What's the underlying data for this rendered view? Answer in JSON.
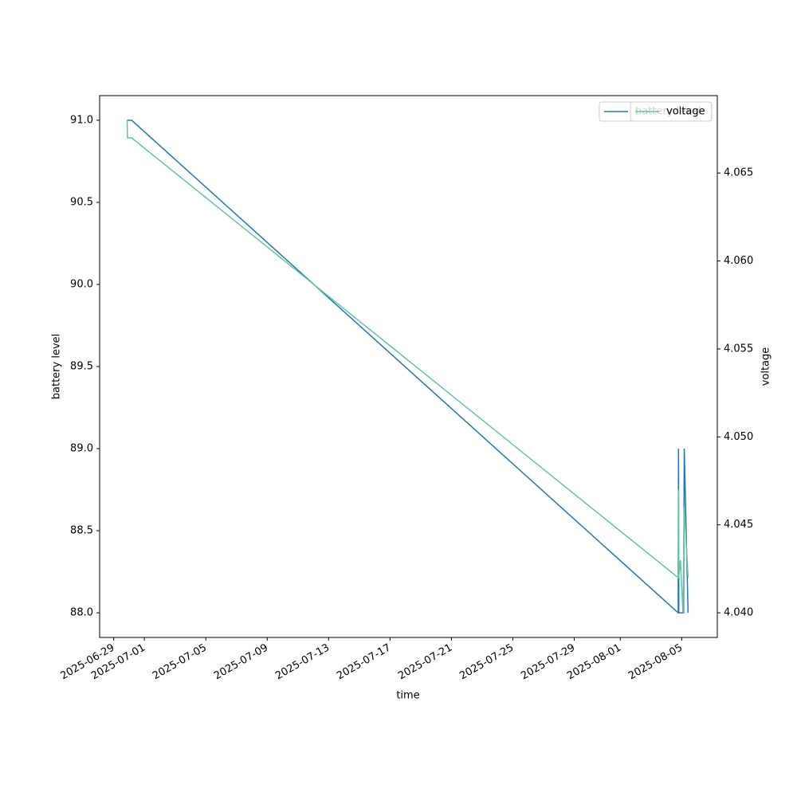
{
  "chart_data": {
    "type": "line",
    "x_label": "time",
    "y_label": "battery level",
    "y2_label": "voltage",
    "xlim": [
      "2025-06-28T02:00",
      "2025-08-07T07:40"
    ],
    "xticks": [
      "2025-06-29",
      "2025-07-01",
      "2025-07-05",
      "2025-07-09",
      "2025-07-13",
      "2025-07-17",
      "2025-07-21",
      "2025-07-25",
      "2025-07-29",
      "2025-08-01",
      "2025-08-05"
    ],
    "ylim": [
      87.85,
      91.15
    ],
    "yticks": [
      {
        "value": 88,
        "label": "88.0"
      },
      {
        "value": 88.5,
        "label": "88.5"
      },
      {
        "value": 89,
        "label": "89.0"
      },
      {
        "value": 89.5,
        "label": "89.5"
      },
      {
        "value": 90,
        "label": "90.0"
      },
      {
        "value": 90.5,
        "label": "90.5"
      },
      {
        "value": 91,
        "label": "91.0"
      }
    ],
    "y2lim": [
      4.0386,
      4.0694
    ],
    "y2ticks": [
      {
        "value": 4.04,
        "label": "4.040"
      },
      4.045,
      {
        "value": 4.05,
        "label": "4.050"
      },
      4.055,
      {
        "value": 4.06,
        "label": "4.060"
      },
      4.065
    ],
    "grid": false,
    "series": [
      {
        "name": "battery level",
        "color": "#1f77b4",
        "x": [
          "2025-06-29T21:00",
          "2025-06-30T04:00",
          "2025-08-04T18:30",
          "2025-08-04T19:00",
          "2025-08-04T19:30",
          "2025-08-05T03:00",
          "2025-08-05T04:00",
          "2025-08-05T10:00"
        ],
        "values": [
          91,
          91,
          88,
          89,
          88,
          88,
          89,
          88
        ]
      },
      {
        "name": "voltage",
        "color": "#66c2a5",
        "axis": "y2",
        "x": [
          "2025-06-29T21:00",
          "2025-06-29T21:30",
          "2025-06-30T04:00",
          "2025-08-04T18:30",
          "2025-08-04T19:00",
          "2025-08-04T19:30",
          "2025-08-04T22:00",
          "2025-08-05T02:00",
          "2025-08-05T04:00",
          "2025-08-05T10:00"
        ],
        "values": [
          4.068,
          4.067,
          4.067,
          4.042,
          4.047,
          4.042,
          4.043,
          4.04,
          4.046,
          4.042
        ]
      }
    ]
  }
}
